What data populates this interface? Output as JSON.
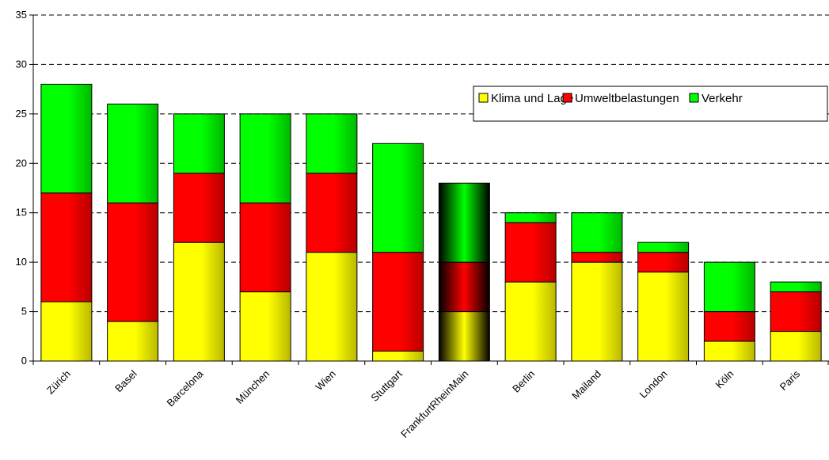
{
  "chart_data": {
    "type": "bar",
    "stacked": true,
    "categories": [
      "Zürich",
      "Basel",
      "Barcelona",
      "München",
      "Wien",
      "Stuttgart",
      "FrankfurtRheinMain",
      "Berlin",
      "Mailand",
      "London",
      "Köln",
      "Paris"
    ],
    "series": [
      {
        "name": "Klima und Lage",
        "color": "#FFFF00",
        "values": [
          6,
          4,
          12,
          7,
          11,
          1,
          5,
          8,
          10,
          9,
          2,
          3
        ]
      },
      {
        "name": "Umweltbelastungen",
        "color": "#FF0000",
        "values": [
          11,
          12,
          7,
          9,
          8,
          10,
          5,
          6,
          1,
          2,
          3,
          4
        ]
      },
      {
        "name": "Verkehr",
        "color": "#00FF00",
        "values": [
          11,
          10,
          6,
          9,
          6,
          11,
          8,
          1,
          4,
          1,
          5,
          1
        ]
      }
    ],
    "highlight_category": "FrankfurtRheinMain",
    "ylim": [
      0,
      35
    ],
    "yticks": [
      0,
      5,
      10,
      15,
      20,
      25,
      30,
      35
    ],
    "grid": "horizontal-dashed",
    "legend_position": "top-right",
    "title": "",
    "xlabel": "",
    "ylabel": ""
  }
}
